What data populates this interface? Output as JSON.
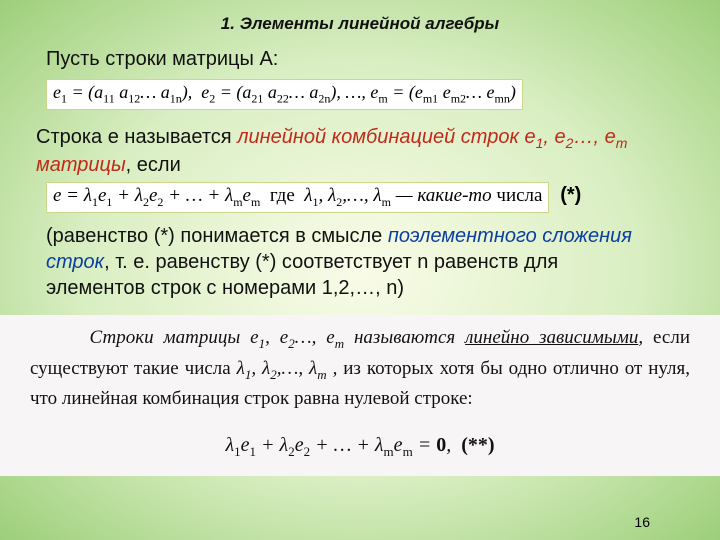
{
  "title": "1. Элементы линейной алгебры",
  "line1": "Пусть строки матрицы А:",
  "formula1_html": "e<span class='sub'>1</span> = (a<span class='sub'>11</span> a<span class='sub'>12</span>… a<span class='sub'>1n</span>),&nbsp;&nbsp;e<span class='sub'>2</span> = (a<span class='sub'>21</span> a<span class='sub'>22</span>… a<span class='sub'>2n</span>), …, e<span class='sub'>m</span> = (e<span class='sub'>m1</span> e<span class='sub'>m2</span>… e<span class='sub'>mn</span>)",
  "line2_pre": "Строка е называется ",
  "line2_emph_html": "линейной комбинацией строк e<span class='sub'>1</span>, e<span class='sub'>2</span>…, e<span class='sub'>m</span> матрицы",
  "line2_post": ", если",
  "formula2_box_html": "e = λ<span class='sub'>1</span>e<span class='sub'>1</span> + λ<span class='sub'>2</span>e<span class='sub'>2</span> + … + λ<span class='sub'>m</span>e<span class='sub'>m</span>&nbsp;&nbsp;<span class='norm'>где</span>&nbsp;&nbsp;λ<span class='sub'>1</span>, λ<span class='sub'>2</span>,…, λ<span class='sub'>m</span> — какие-то <span class='norm'>числа</span>",
  "star1": "(*)",
  "line3_pre": "(равенство (*) понимается в смысле ",
  "line3_emph": "поэлементного сложения строк",
  "line3_post": ", т. е. равенству (*) соответствует n равенств для элементов строк с номерами 1,2,…, n)",
  "block2_html": "&nbsp;&nbsp;&nbsp;&nbsp;&nbsp;&nbsp;Строки матрицы e<span class='sub'>1</span>, e<span class='sub'>2</span>…, e<span class='sub'>m</span> называются <span class='underline'>линейно зависимыми</span>, <span class='norm'>если существуют такие числа</span> λ<span class='sub'>1</span>, λ<span class='sub'>2</span>,…, λ<span class='sub'>m</span> , <span class='norm'>из которых хотя бы одно отлично от нуля, что линейная комбинация строк равна нулевой строке:</span>",
  "block2_formula_html": "λ<span class='sub'>1</span>e<span class='sub'>1</span> + λ<span class='sub'>2</span>e<span class='sub'>2</span> + … + λ<span class='sub'>m</span>e<span class='sub'>m</span> = <b class='norm'>0</b>,&nbsp;&nbsp;<span class='norm'><b>(**)</b></span>",
  "page_number": "16"
}
